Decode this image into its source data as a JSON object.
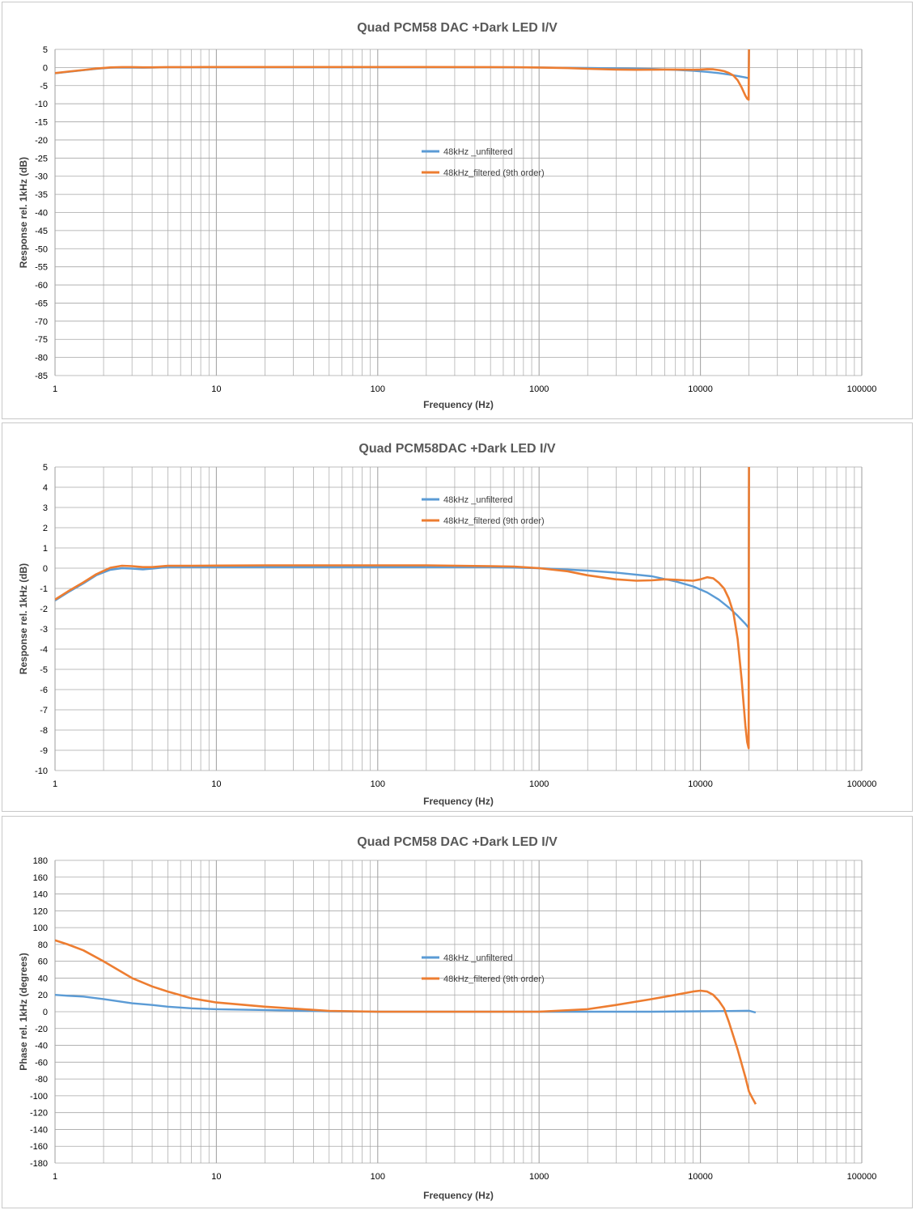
{
  "colors": {
    "unfiltered": "#5b9bd5",
    "filtered": "#ed7d31",
    "grid": "#a6a6a6",
    "text": "#595959"
  },
  "chart_data": [
    {
      "type": "line",
      "title": "Quad PCM58 DAC +Dark LED I/V",
      "xlabel": "Frequency (Hz)",
      "ylabel": "Response rel. 1kHz (dB)",
      "x_scale": "log",
      "xlim": [
        1,
        100000
      ],
      "ylim": [
        -85,
        5
      ],
      "y_step": 5,
      "x_ticks": [
        "1",
        "10",
        "100",
        "1000",
        "10000",
        "100000"
      ],
      "y_ticks": [
        "5",
        "0",
        "-5",
        "-10",
        "-15",
        "-20",
        "-25",
        "-30",
        "-35",
        "-40",
        "-45",
        "-50",
        "-55",
        "-60",
        "-65",
        "-70",
        "-75",
        "-80",
        "-85"
      ],
      "grid": true,
      "legend_position": "center",
      "series": [
        {
          "name": "48kHz _unfiltered",
          "x": [
            1,
            1.2,
            1.5,
            1.8,
            2.2,
            2.6,
            3,
            3.5,
            4,
            5,
            7,
            10,
            20,
            50,
            100,
            200,
            500,
            1000,
            2000,
            3000,
            5000,
            7000,
            9000,
            11000,
            13000,
            15000,
            17000,
            19000,
            19900,
            20000
          ],
          "values": [
            -1.6,
            -1.2,
            -0.75,
            -0.35,
            -0.08,
            0.0,
            -0.02,
            -0.06,
            -0.02,
            0.06,
            0.05,
            0.05,
            0.05,
            0.05,
            0.05,
            0.05,
            0.05,
            0.0,
            -0.12,
            -0.22,
            -0.4,
            -0.65,
            -0.9,
            -1.2,
            -1.55,
            -1.95,
            -2.35,
            -2.75,
            -2.95,
            5.0
          ]
        },
        {
          "name": "48kHz_filtered (9th order)",
          "x": [
            1,
            1.2,
            1.5,
            1.8,
            2.2,
            2.6,
            3,
            3.5,
            4,
            5,
            7,
            10,
            20,
            50,
            100,
            200,
            500,
            700,
            1000,
            1500,
            2000,
            3000,
            4000,
            5000,
            6000,
            7000,
            8000,
            9000,
            10000,
            11000,
            12000,
            13000,
            14000,
            15000,
            16000,
            17000,
            18000,
            19000,
            19500,
            19900,
            20000
          ],
          "values": [
            -1.55,
            -1.15,
            -0.7,
            -0.3,
            0.02,
            0.12,
            0.1,
            0.05,
            0.05,
            0.12,
            0.12,
            0.13,
            0.14,
            0.14,
            0.14,
            0.14,
            0.1,
            0.08,
            0.0,
            -0.15,
            -0.35,
            -0.55,
            -0.62,
            -0.6,
            -0.55,
            -0.57,
            -0.6,
            -0.62,
            -0.55,
            -0.45,
            -0.5,
            -0.72,
            -1.0,
            -1.5,
            -2.2,
            -3.5,
            -5.5,
            -7.8,
            -8.6,
            -8.9,
            5.0
          ]
        }
      ]
    },
    {
      "type": "line",
      "title": "Quad PCM58DAC +Dark LED I/V",
      "xlabel": "Frequency (Hz)",
      "ylabel": "Response rel. 1kHz (dB)",
      "x_scale": "log",
      "xlim": [
        1,
        100000
      ],
      "ylim": [
        -10,
        5
      ],
      "y_step": 1,
      "x_ticks": [
        "1",
        "10",
        "100",
        "1000",
        "10000",
        "100000"
      ],
      "y_ticks": [
        "5",
        "4",
        "3",
        "2",
        "1",
        "0",
        "-1",
        "-2",
        "-3",
        "-4",
        "-5",
        "-6",
        "-7",
        "-8",
        "-9",
        "-10"
      ],
      "grid": true,
      "legend_position": "top-center",
      "series": [
        {
          "name": "48kHz _unfiltered",
          "x": [
            1,
            1.2,
            1.5,
            1.8,
            2.2,
            2.6,
            3,
            3.5,
            4,
            5,
            7,
            10,
            20,
            50,
            100,
            200,
            500,
            1000,
            2000,
            3000,
            5000,
            7000,
            9000,
            11000,
            13000,
            15000,
            17000,
            19000,
            19900,
            20000
          ],
          "values": [
            -1.6,
            -1.2,
            -0.75,
            -0.35,
            -0.08,
            0.0,
            -0.02,
            -0.06,
            -0.02,
            0.06,
            0.05,
            0.05,
            0.05,
            0.05,
            0.05,
            0.05,
            0.05,
            0.0,
            -0.12,
            -0.22,
            -0.4,
            -0.65,
            -0.9,
            -1.2,
            -1.55,
            -1.95,
            -2.35,
            -2.75,
            -2.95,
            5.0
          ]
        },
        {
          "name": "48kHz_filtered (9th order)",
          "x": [
            1,
            1.2,
            1.5,
            1.8,
            2.2,
            2.6,
            3,
            3.5,
            4,
            5,
            7,
            10,
            20,
            50,
            100,
            200,
            500,
            700,
            1000,
            1500,
            2000,
            3000,
            4000,
            5000,
            6000,
            7000,
            8000,
            9000,
            10000,
            11000,
            12000,
            13000,
            14000,
            15000,
            16000,
            17000,
            18000,
            19000,
            19500,
            19900,
            20000
          ],
          "values": [
            -1.55,
            -1.15,
            -0.7,
            -0.3,
            0.02,
            0.12,
            0.1,
            0.05,
            0.05,
            0.12,
            0.12,
            0.13,
            0.14,
            0.14,
            0.14,
            0.14,
            0.1,
            0.08,
            0.0,
            -0.15,
            -0.35,
            -0.55,
            -0.62,
            -0.6,
            -0.55,
            -0.57,
            -0.6,
            -0.62,
            -0.55,
            -0.45,
            -0.5,
            -0.72,
            -1.0,
            -1.5,
            -2.2,
            -3.5,
            -5.5,
            -7.8,
            -8.6,
            -8.9,
            5.0
          ]
        }
      ]
    },
    {
      "type": "line",
      "title": "Quad PCM58 DAC +Dark LED I/V",
      "xlabel": "Frequency (Hz)",
      "ylabel": "Phase rel. 1kHz (degrees)",
      "x_scale": "log",
      "xlim": [
        1,
        100000
      ],
      "ylim": [
        -180,
        180
      ],
      "y_step": 20,
      "x_ticks": [
        "1",
        "10",
        "100",
        "1000",
        "10000",
        "100000"
      ],
      "y_ticks": [
        "180",
        "160",
        "140",
        "120",
        "100",
        "80",
        "60",
        "40",
        "20",
        "0",
        "-20",
        "-40",
        "-60",
        "-80",
        "-100",
        "-120",
        "-140",
        "-160",
        "-180"
      ],
      "grid": true,
      "legend_position": "center",
      "series": [
        {
          "name": "48kHz _unfiltered",
          "x": [
            1,
            1.2,
            1.5,
            2,
            3,
            4,
            5,
            7,
            10,
            20,
            50,
            100,
            500,
            1000,
            2000,
            5000,
            10000,
            15000,
            20000,
            22000
          ],
          "values": [
            20,
            19,
            18,
            15,
            10,
            8,
            6,
            4,
            3,
            2,
            0.5,
            0,
            0,
            0,
            0,
            0,
            0.5,
            0.8,
            1.2,
            -1
          ]
        },
        {
          "name": "48kHz_filtered (9th order)",
          "x": [
            1,
            1.2,
            1.5,
            2,
            3,
            4,
            5,
            7,
            10,
            20,
            50,
            100,
            500,
            1000,
            2000,
            3000,
            5000,
            7000,
            9000,
            10000,
            11000,
            12000,
            13000,
            14000,
            15000,
            17000,
            19000,
            20000,
            21000,
            22000
          ],
          "values": [
            85,
            80,
            73,
            60,
            40,
            30,
            24,
            16,
            11,
            6,
            1,
            0,
            0,
            0,
            3,
            8,
            15,
            20,
            24,
            25,
            24,
            20,
            13,
            4,
            -12,
            -45,
            -78,
            -95,
            -103,
            -110
          ]
        }
      ]
    }
  ]
}
